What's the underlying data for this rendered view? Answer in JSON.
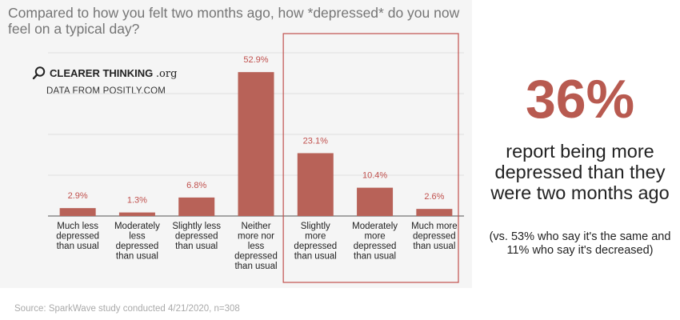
{
  "title": "Compared to how you felt two months ago, how *depressed* do you now feel on a typical day?",
  "logo": {
    "name": "CLEARER THINKING",
    "suffix": ".org",
    "icon": "magnifier-icon"
  },
  "data_source": "DATA FROM POSITLY.COM",
  "colors": {
    "bar": "#b86258",
    "highlight_box": "#c0504d",
    "accent": "#b85a50"
  },
  "callout": {
    "percent": "36%",
    "headline": "report being more depressed than they were two months ago",
    "note": "(vs. 53% who say it's the same and 11% who say it's decreased)"
  },
  "source": "Source: SparkWave study conducted 4/21/2020, n=308",
  "chart_data": {
    "type": "bar",
    "categories": [
      [
        "Much less",
        "depressed",
        "than usual"
      ],
      [
        "Moderately",
        "less",
        "depressed",
        "than usual"
      ],
      [
        "Slightly less",
        "depressed",
        "than usual"
      ],
      [
        "Neither",
        "more nor",
        "less",
        "depressed",
        "than usual"
      ],
      [
        "Slightly",
        "more",
        "depressed",
        "than usual"
      ],
      [
        "Moderately",
        "more",
        "depressed",
        "than usual"
      ],
      [
        "Much more",
        "depressed",
        "than usual"
      ]
    ],
    "values": [
      2.9,
      1.3,
      6.8,
      52.9,
      23.1,
      10.4,
      2.6
    ],
    "value_labels": [
      "2.9%",
      "1.3%",
      "6.8%",
      "52.9%",
      "23.1%",
      "10.4%",
      "2.6%"
    ],
    "ylim": [
      0,
      60
    ],
    "gridlines": [
      0,
      15,
      30,
      45,
      60
    ],
    "highlighted_categories": [
      4,
      5,
      6
    ]
  }
}
